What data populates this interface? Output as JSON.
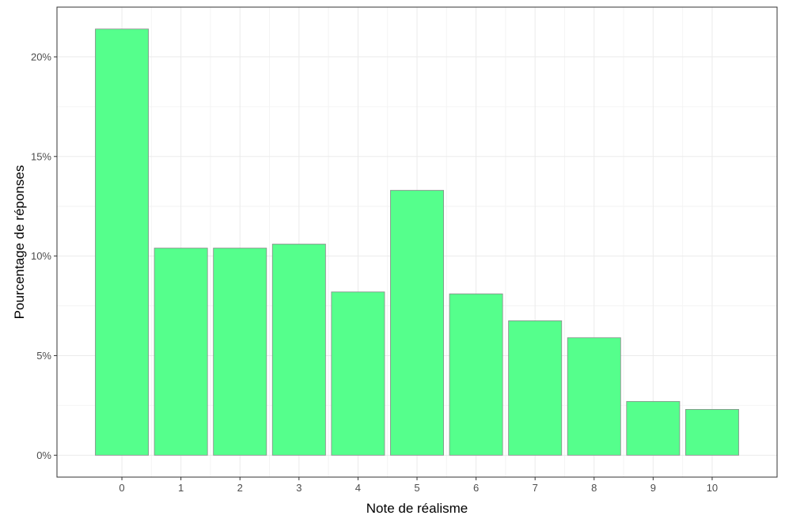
{
  "chart_data": {
    "type": "bar",
    "categories": [
      "0",
      "1",
      "2",
      "3",
      "4",
      "5",
      "6",
      "7",
      "8",
      "9",
      "10"
    ],
    "values": [
      21.4,
      10.4,
      10.4,
      10.6,
      8.2,
      13.3,
      8.1,
      6.75,
      5.9,
      2.7,
      2.3
    ],
    "xlabel": "Note de réalisme",
    "ylabel": "Pourcentage de réponses",
    "ylim": [
      -1.1,
      22.5
    ],
    "yticks": [
      0,
      5,
      10,
      15,
      20
    ],
    "ytick_labels": [
      "0%",
      "5%",
      "10%",
      "15%",
      "20%"
    ],
    "grid": true,
    "legend": "none",
    "colors": {
      "bar_fill": "#55ff8c",
      "bar_stroke": "#8a8a8a",
      "grid_major": "#ebebeb",
      "grid_minor": "#f4f4f4",
      "panel_border": "#333333",
      "background": "#ffffff"
    }
  }
}
